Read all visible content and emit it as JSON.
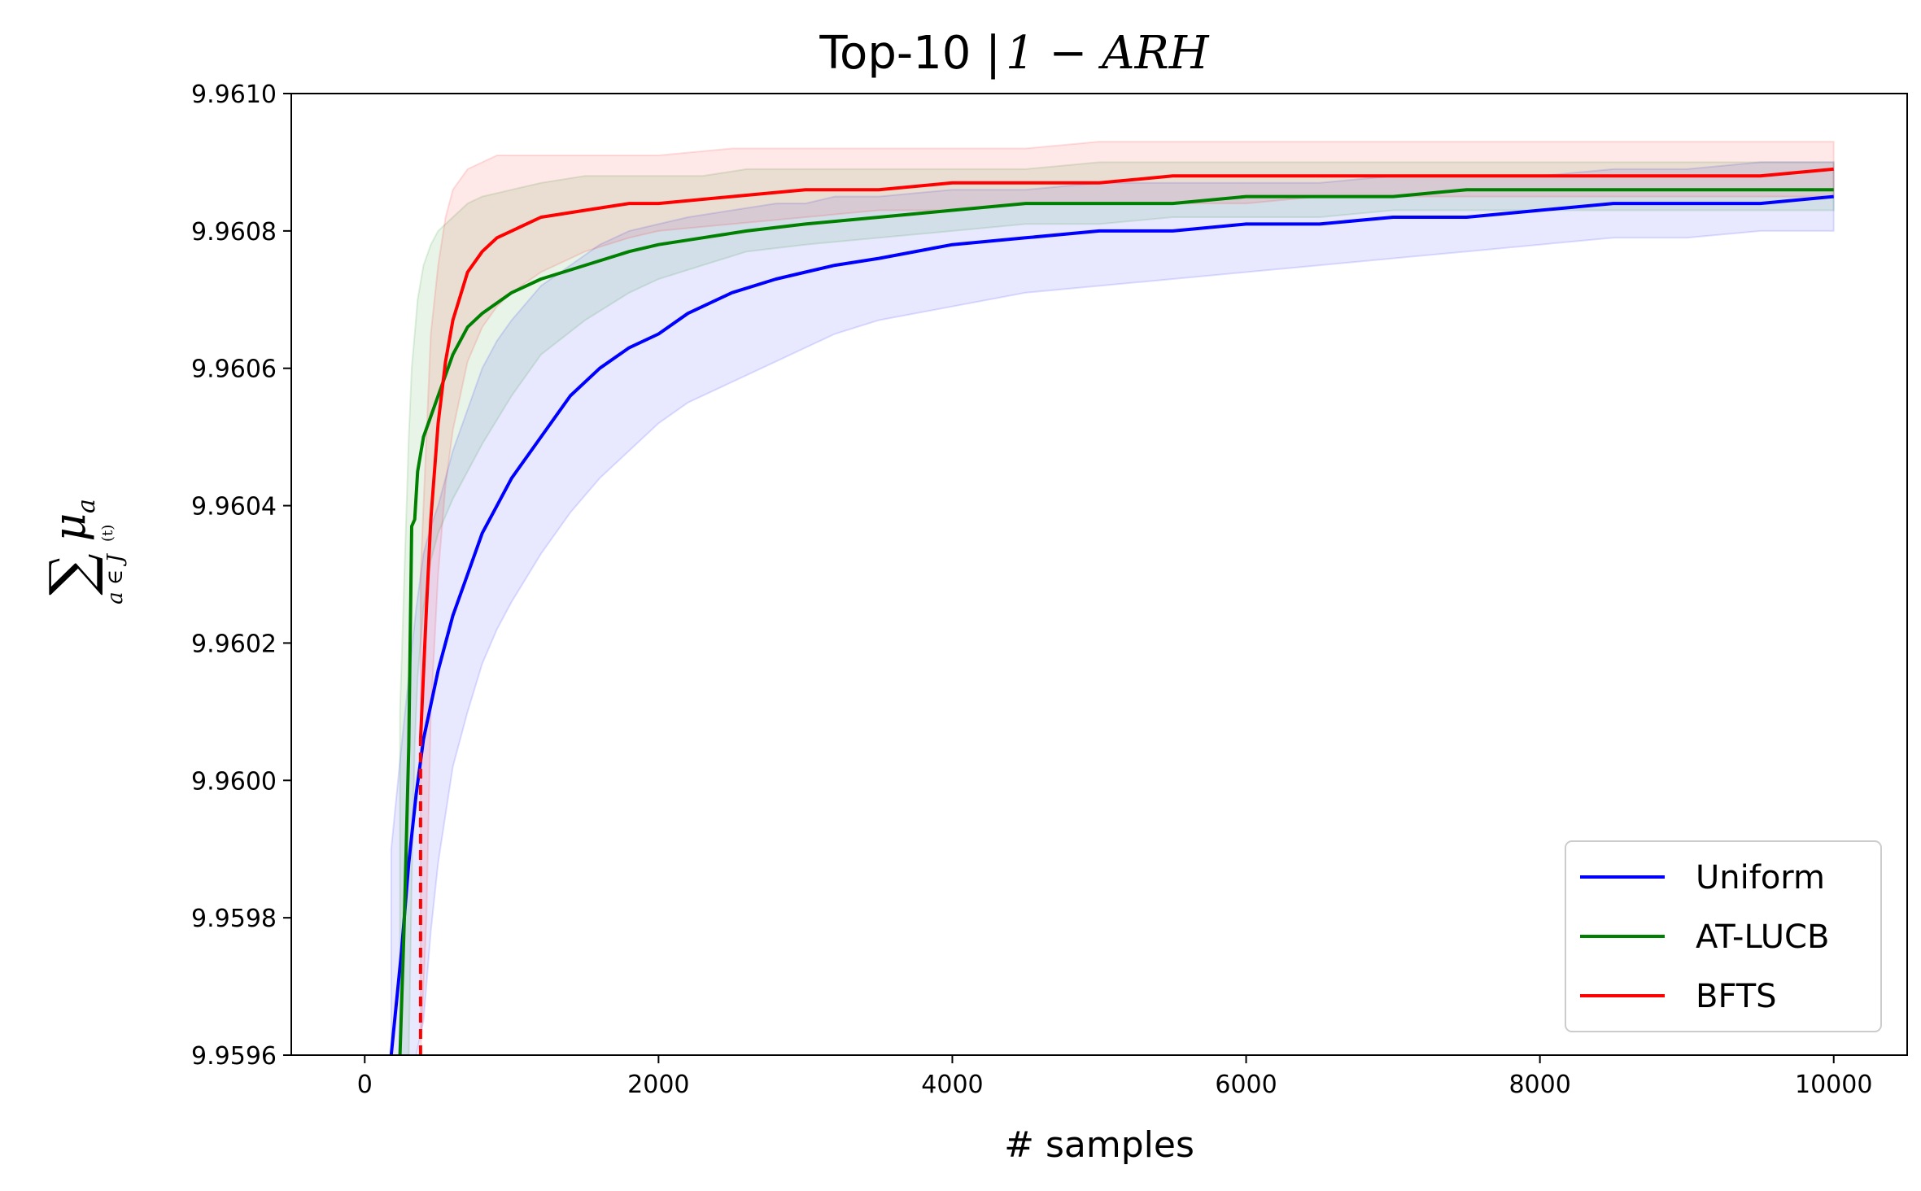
{
  "chart_data": {
    "type": "line",
    "title": "Top-10 | ",
    "title_math": "1 − ARH",
    "xlabel": "# samples",
    "ylabel_sum": "∑",
    "ylabel_mu": "μ",
    "ylabel_mu_sub": "a",
    "ylabel_sub": "a ∈ J",
    "ylabel_sub_sup": "(t)",
    "xlim": [
      -500,
      10500
    ],
    "ylim": [
      9.9596,
      9.961
    ],
    "x_ticks": [
      0,
      2000,
      4000,
      6000,
      8000,
      10000
    ],
    "x_tick_labels": [
      "0",
      "2000",
      "4000",
      "6000",
      "8000",
      "10000"
    ],
    "y_ticks": [
      9.9596,
      9.9598,
      9.96,
      9.9602,
      9.9604,
      9.9606,
      9.9608,
      9.961
    ],
    "y_tick_labels": [
      "9.9596",
      "9.9598",
      "9.9600",
      "9.9602",
      "9.9604",
      "9.9606",
      "9.9608",
      "9.9610"
    ],
    "grid": false,
    "legend_position": "bottom-right",
    "series": [
      {
        "name": "Uniform",
        "color": "#0000ff",
        "x": [
          180,
          250,
          300,
          350,
          400,
          450,
          500,
          600,
          700,
          800,
          900,
          1000,
          1200,
          1400,
          1600,
          1800,
          2000,
          2200,
          2500,
          2800,
          3000,
          3200,
          3500,
          4000,
          4500,
          5000,
          5500,
          6000,
          6500,
          7000,
          7500,
          8000,
          8500,
          9000,
          9500,
          10000
        ],
        "y": [
          9.9596,
          9.95975,
          9.95988,
          9.95998,
          9.96006,
          9.96011,
          9.96016,
          9.96024,
          9.9603,
          9.96036,
          9.9604,
          9.96044,
          9.9605,
          9.96056,
          9.9606,
          9.96063,
          9.96065,
          9.96068,
          9.96071,
          9.96073,
          9.96074,
          9.96075,
          9.96076,
          9.96078,
          9.96079,
          9.9608,
          9.9608,
          9.96081,
          9.96081,
          9.96082,
          9.96082,
          9.96083,
          9.96084,
          9.96084,
          9.96084,
          9.96085
        ],
        "band_upper": [
          9.9599,
          9.96005,
          9.96015,
          9.96025,
          9.96033,
          9.96037,
          9.9604,
          9.96048,
          9.96054,
          9.9606,
          9.96064,
          9.96067,
          9.96072,
          9.96075,
          9.96078,
          9.9608,
          9.96081,
          9.96082,
          9.96083,
          9.96084,
          9.96084,
          9.96085,
          9.96085,
          9.96086,
          9.96086,
          9.96087,
          9.96087,
          9.96087,
          9.96087,
          9.96088,
          9.96088,
          9.96088,
          9.96089,
          9.96089,
          9.9609,
          9.9609
        ],
        "band_lower": [
          9.9596,
          9.9596,
          9.9596,
          9.9596,
          9.95965,
          9.95978,
          9.95988,
          9.96002,
          9.9601,
          9.96017,
          9.96022,
          9.96026,
          9.96033,
          9.96039,
          9.96044,
          9.96048,
          9.96052,
          9.96055,
          9.96058,
          9.96061,
          9.96063,
          9.96065,
          9.96067,
          9.96069,
          9.96071,
          9.96072,
          9.96073,
          9.96074,
          9.96075,
          9.96076,
          9.96077,
          9.96078,
          9.96079,
          9.96079,
          9.9608,
          9.9608
        ]
      },
      {
        "name": "AT-LUCB",
        "color": "#008000",
        "x": [
          240,
          270,
          300,
          320,
          340,
          360,
          400,
          450,
          500,
          600,
          700,
          800,
          1000,
          1200,
          1500,
          1800,
          2000,
          2300,
          2600,
          3000,
          3500,
          4000,
          4500,
          5000,
          5500,
          6000,
          6500,
          7000,
          7500,
          8000,
          8500,
          9000,
          9500,
          10000
        ],
        "y": [
          9.9596,
          9.9598,
          9.96005,
          9.96037,
          9.96038,
          9.96045,
          9.9605,
          9.96053,
          9.96056,
          9.96062,
          9.96066,
          9.96068,
          9.96071,
          9.96073,
          9.96075,
          9.96077,
          9.96078,
          9.96079,
          9.9608,
          9.96081,
          9.96082,
          9.96083,
          9.96084,
          9.96084,
          9.96084,
          9.96085,
          9.96085,
          9.96085,
          9.96086,
          9.96086,
          9.96086,
          9.96086,
          9.96086,
          9.96086
        ],
        "band_upper": [
          9.9601,
          9.9603,
          9.9605,
          9.9606,
          9.96065,
          9.9607,
          9.96075,
          9.96078,
          9.9608,
          9.96082,
          9.96084,
          9.96085,
          9.96086,
          9.96087,
          9.96088,
          9.96088,
          9.96088,
          9.96088,
          9.96089,
          9.96089,
          9.96089,
          9.96089,
          9.96089,
          9.9609,
          9.9609,
          9.9609,
          9.9609,
          9.9609,
          9.9609,
          9.9609,
          9.9609,
          9.9609,
          9.9609,
          9.9609
        ],
        "band_lower": [
          9.9596,
          9.9596,
          9.9596,
          9.95985,
          9.96005,
          9.96015,
          9.96025,
          9.96032,
          9.96036,
          9.96041,
          9.96045,
          9.96049,
          9.96056,
          9.96062,
          9.96067,
          9.96071,
          9.96073,
          9.96075,
          9.96077,
          9.96078,
          9.96079,
          9.9608,
          9.96081,
          9.96081,
          9.96082,
          9.96082,
          9.96082,
          9.96083,
          9.96083,
          9.96083,
          9.96083,
          9.96083,
          9.96083,
          9.96083
        ]
      },
      {
        "name": "BFTS",
        "color": "#ff0000",
        "x": [
          380,
          420,
          450,
          500,
          550,
          600,
          700,
          800,
          900,
          1000,
          1200,
          1500,
          1800,
          2000,
          2500,
          3000,
          3500,
          4000,
          4500,
          5000,
          5500,
          6000,
          6500,
          7000,
          7500,
          8000,
          8500,
          9000,
          9500,
          10000
        ],
        "y": [
          9.96006,
          9.96025,
          9.96038,
          9.96052,
          9.96061,
          9.96067,
          9.96074,
          9.96077,
          9.96079,
          9.9608,
          9.96082,
          9.96083,
          9.96084,
          9.96084,
          9.96085,
          9.96086,
          9.96086,
          9.96087,
          9.96087,
          9.96087,
          9.96088,
          9.96088,
          9.96088,
          9.96088,
          9.96088,
          9.96088,
          9.96088,
          9.96088,
          9.96088,
          9.96089
        ],
        "band_upper": [
          9.9603,
          9.9605,
          9.96065,
          9.96075,
          9.96082,
          9.96086,
          9.96089,
          9.9609,
          9.96091,
          9.96091,
          9.96091,
          9.96091,
          9.96091,
          9.96091,
          9.96092,
          9.96092,
          9.96092,
          9.96092,
          9.96092,
          9.96093,
          9.96093,
          9.96093,
          9.96093,
          9.96093,
          9.96093,
          9.96093,
          9.96093,
          9.96093,
          9.96093,
          9.96093
        ],
        "band_lower": [
          9.9596,
          9.9598,
          9.9601,
          9.9603,
          9.96043,
          9.96051,
          9.96061,
          9.96066,
          9.96069,
          9.96071,
          9.96074,
          9.96077,
          9.96079,
          9.9608,
          9.96081,
          9.96082,
          9.96083,
          9.96083,
          9.96084,
          9.96084,
          9.96084,
          9.96084,
          9.96085,
          9.96085,
          9.96085,
          9.96085,
          9.96085,
          9.96085,
          9.96085,
          9.96085
        ]
      }
    ],
    "vline": {
      "x": 380,
      "from": 9.9596,
      "to": 9.96006,
      "color": "#ff0000"
    }
  }
}
